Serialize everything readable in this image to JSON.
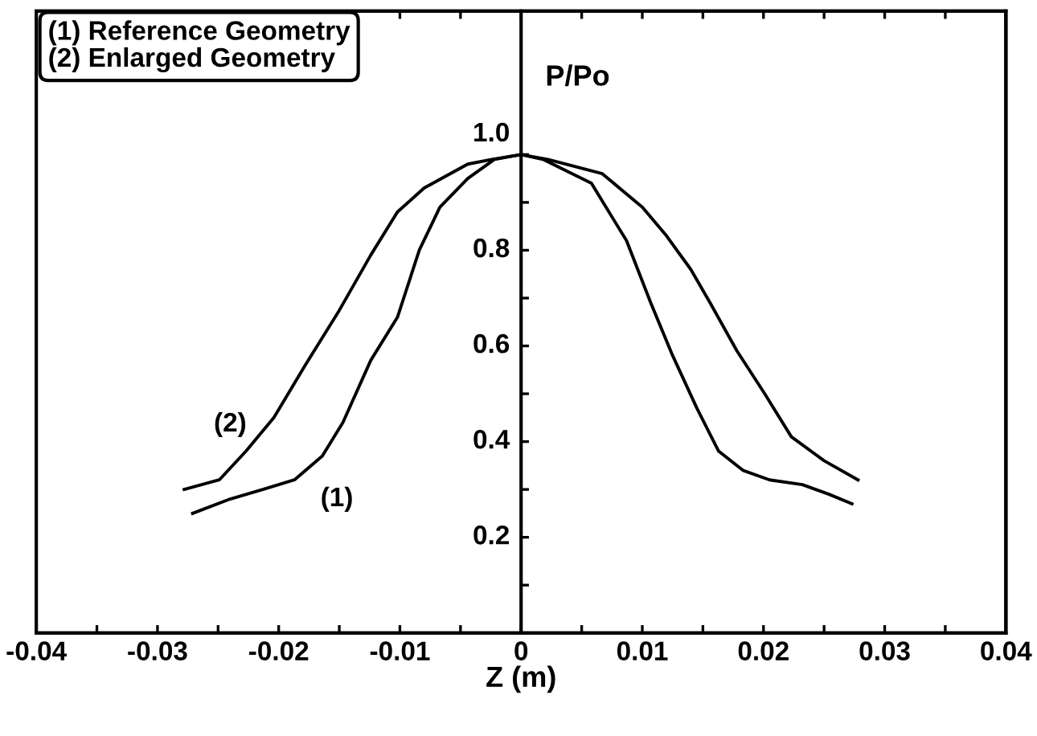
{
  "chart_data": {
    "type": "line",
    "xlabel": "Z (m)",
    "ylabel": "P/Po",
    "xlim": [
      -0.04,
      0.04
    ],
    "ylim": [
      0,
      1.3
    ],
    "xticks": [
      -0.04,
      {
        "value": -0.035,
        "label": null
      },
      -0.03,
      {
        "value": -0.025,
        "label": null
      },
      -0.02,
      {
        "value": -0.015,
        "label": null
      },
      -0.01,
      {
        "value": -0.005,
        "label": null
      },
      0,
      {
        "value": 0.005,
        "label": null
      },
      0.01,
      {
        "value": 0.015,
        "label": null
      },
      0.02,
      {
        "value": 0.025,
        "label": null
      },
      0.03,
      {
        "value": 0.035,
        "label": null
      },
      0.04
    ],
    "yticks": [
      {
        "value": 0.1,
        "label": null
      },
      0.2,
      {
        "value": 0.3,
        "label": null
      },
      0.4,
      {
        "value": 0.5,
        "label": null
      },
      0.6,
      {
        "value": 0.7,
        "label": null
      },
      0.8,
      {
        "value": 0.9,
        "label": null
      },
      {
        "value": 1.0,
        "label": "1.0"
      }
    ],
    "grid": false,
    "legend": false,
    "marker": "none",
    "line_style": "solid",
    "series": [
      {
        "color": "#000000",
        "x": [
          -0.0271,
          -0.024,
          -0.0213,
          -0.0187,
          -0.0164,
          -0.0147,
          -0.0124,
          -0.0102,
          -0.0084,
          -0.0067,
          -0.0044,
          -0.0022,
          0,
          0.0018,
          0.0058,
          0.0087,
          0.0107,
          0.0125,
          0.0145,
          0.0163,
          0.0183,
          0.0205,
          0.0232,
          0.0254,
          0.0273
        ],
        "values": [
          0.25,
          0.28,
          0.3,
          0.32,
          0.37,
          0.44,
          0.57,
          0.66,
          0.8,
          0.89,
          0.95,
          0.99,
          1.0,
          0.99,
          0.94,
          0.82,
          0.69,
          0.58,
          0.47,
          0.38,
          0.34,
          0.32,
          0.31,
          0.29,
          0.27
        ]
      },
      {
        "color": "#000000",
        "x": [
          -0.0278,
          -0.0249,
          -0.0227,
          -0.0204,
          -0.0178,
          -0.0151,
          -0.0124,
          -0.0102,
          -0.008,
          -0.0044,
          -0.0024,
          0,
          0.0022,
          0.0067,
          0.01,
          0.012,
          0.014,
          0.0156,
          0.0178,
          0.0201,
          0.0223,
          0.025,
          0.0278
        ],
        "values": [
          0.3,
          0.32,
          0.38,
          0.45,
          0.56,
          0.67,
          0.79,
          0.88,
          0.93,
          0.98,
          0.99,
          1.0,
          0.99,
          0.96,
          0.89,
          0.83,
          0.76,
          0.69,
          0.59,
          0.5,
          0.41,
          0.36,
          0.32
        ]
      }
    ],
    "annotations": [
      "(1) Reference Geometry",
      "(2) Enlarged Geometry",
      "(2)",
      "(1)"
    ]
  }
}
